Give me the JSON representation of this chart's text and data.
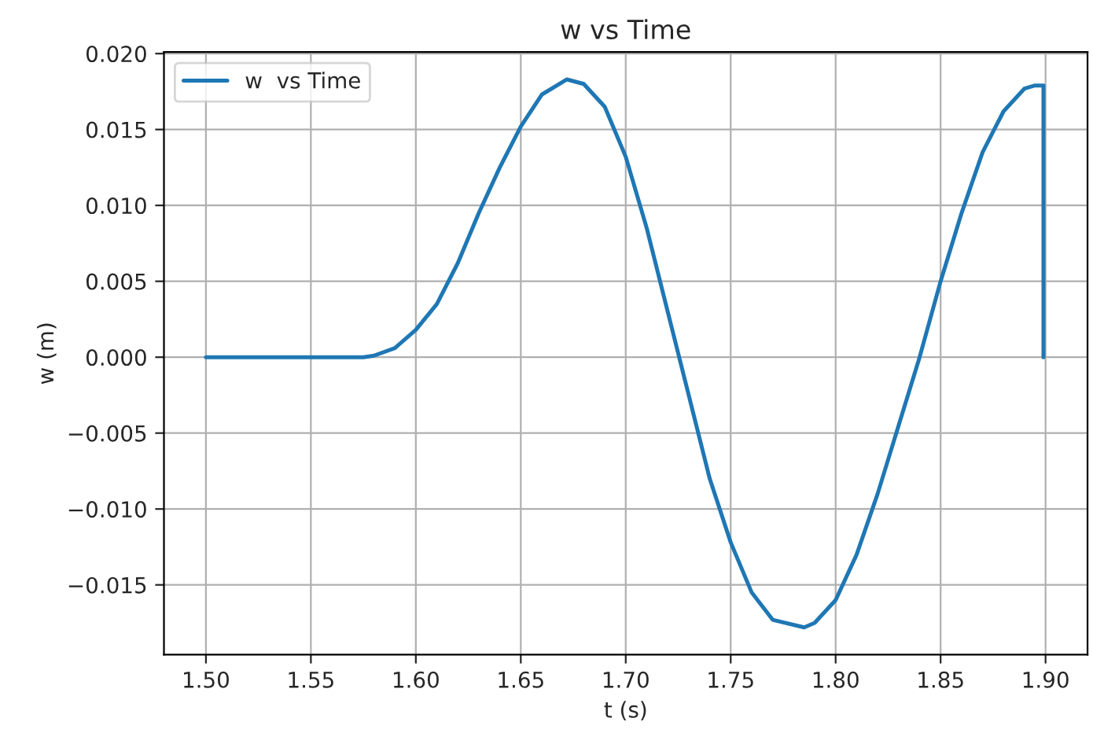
{
  "chart_data": {
    "type": "line",
    "title": "w vs Time",
    "xlabel": "t (s)",
    "ylabel": "w (m)",
    "xlim": [
      1.48,
      1.92
    ],
    "ylim": [
      -0.0196,
      0.0201
    ],
    "xticks": [
      {
        "value": 1.5,
        "label": "1.50"
      },
      {
        "value": 1.55,
        "label": "1.55"
      },
      {
        "value": 1.6,
        "label": "1.60"
      },
      {
        "value": 1.65,
        "label": "1.65"
      },
      {
        "value": 1.7,
        "label": "1.70"
      },
      {
        "value": 1.75,
        "label": "1.75"
      },
      {
        "value": 1.8,
        "label": "1.80"
      },
      {
        "value": 1.85,
        "label": "1.85"
      },
      {
        "value": 1.9,
        "label": "1.90"
      }
    ],
    "yticks": [
      {
        "value": -0.015,
        "label": "−0.015"
      },
      {
        "value": -0.01,
        "label": "−0.010"
      },
      {
        "value": -0.005,
        "label": "−0.005"
      },
      {
        "value": 0,
        "label": "0.000"
      },
      {
        "value": 0.005,
        "label": "0.005"
      },
      {
        "value": 0.01,
        "label": "0.010"
      },
      {
        "value": 0.015,
        "label": "0.015"
      },
      {
        "value": 0.02,
        "label": "0.020"
      }
    ],
    "grid": true,
    "legend": "top left",
    "series": [
      {
        "name": "w  vs Time",
        "color": "#1f77b4",
        "x": [
          1.5,
          1.55,
          1.575,
          1.58,
          1.59,
          1.6,
          1.61,
          1.62,
          1.63,
          1.64,
          1.65,
          1.66,
          1.672,
          1.68,
          1.69,
          1.7,
          1.71,
          1.72,
          1.73,
          1.74,
          1.75,
          1.76,
          1.77,
          1.785,
          1.79,
          1.8,
          1.81,
          1.82,
          1.83,
          1.84,
          1.85,
          1.86,
          1.87,
          1.88,
          1.89,
          1.895,
          1.899,
          1.899
        ],
        "values": [
          0,
          0,
          0,
          0.0001,
          0.0006,
          0.0018,
          0.0035,
          0.0062,
          0.0095,
          0.0125,
          0.0152,
          0.0173,
          0.0183,
          0.018,
          0.0165,
          0.0132,
          0.0085,
          0.003,
          -0.0025,
          -0.008,
          -0.0122,
          -0.0155,
          -0.0173,
          -0.0178,
          -0.0175,
          -0.016,
          -0.013,
          -0.009,
          -0.0045,
          0.0,
          0.005,
          0.0095,
          0.0135,
          0.0162,
          0.0177,
          0.0179,
          0.0179,
          0.0
        ]
      }
    ]
  }
}
